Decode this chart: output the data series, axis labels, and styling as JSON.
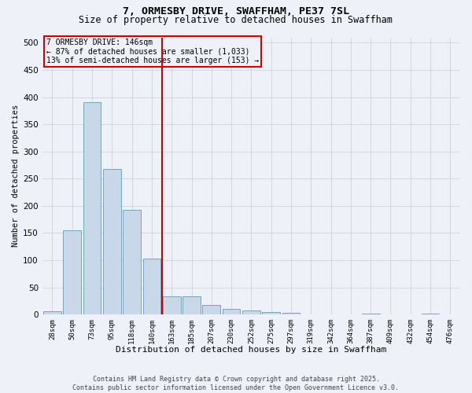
{
  "title_line1": "7, ORMESBY DRIVE, SWAFFHAM, PE37 7SL",
  "title_line2": "Size of property relative to detached houses in Swaffham",
  "xlabel": "Distribution of detached houses by size in Swaffham",
  "ylabel": "Number of detached properties",
  "categories": [
    "28sqm",
    "50sqm",
    "73sqm",
    "95sqm",
    "118sqm",
    "140sqm",
    "163sqm",
    "185sqm",
    "207sqm",
    "230sqm",
    "252sqm",
    "275sqm",
    "297sqm",
    "319sqm",
    "342sqm",
    "364sqm",
    "387sqm",
    "409sqm",
    "432sqm",
    "454sqm",
    "476sqm"
  ],
  "values": [
    6,
    155,
    390,
    268,
    192,
    103,
    34,
    34,
    18,
    10,
    8,
    5,
    3,
    0,
    0,
    0,
    2,
    0,
    0,
    2,
    0
  ],
  "bar_color": "#c8d8e8",
  "bar_edge_color": "#6699bb",
  "background_color": "#eef2f8",
  "vline_x": 5.5,
  "vline_color": "#cc0000",
  "annotation_line1": "7 ORMESBY DRIVE: 146sqm",
  "annotation_line2": "← 87% of detached houses are smaller (1,033)",
  "annotation_line3": "13% of semi-detached houses are larger (153) →",
  "annotation_box_color": "#cc0000",
  "ylim": [
    0,
    510
  ],
  "yticks": [
    0,
    50,
    100,
    150,
    200,
    250,
    300,
    350,
    400,
    450,
    500
  ],
  "footer_text": "Contains HM Land Registry data © Crown copyright and database right 2025.\nContains public sector information licensed under the Open Government Licence v3.0.",
  "grid_color": "#cccccc",
  "figsize": [
    6.0,
    5.0
  ],
  "dpi": 100
}
